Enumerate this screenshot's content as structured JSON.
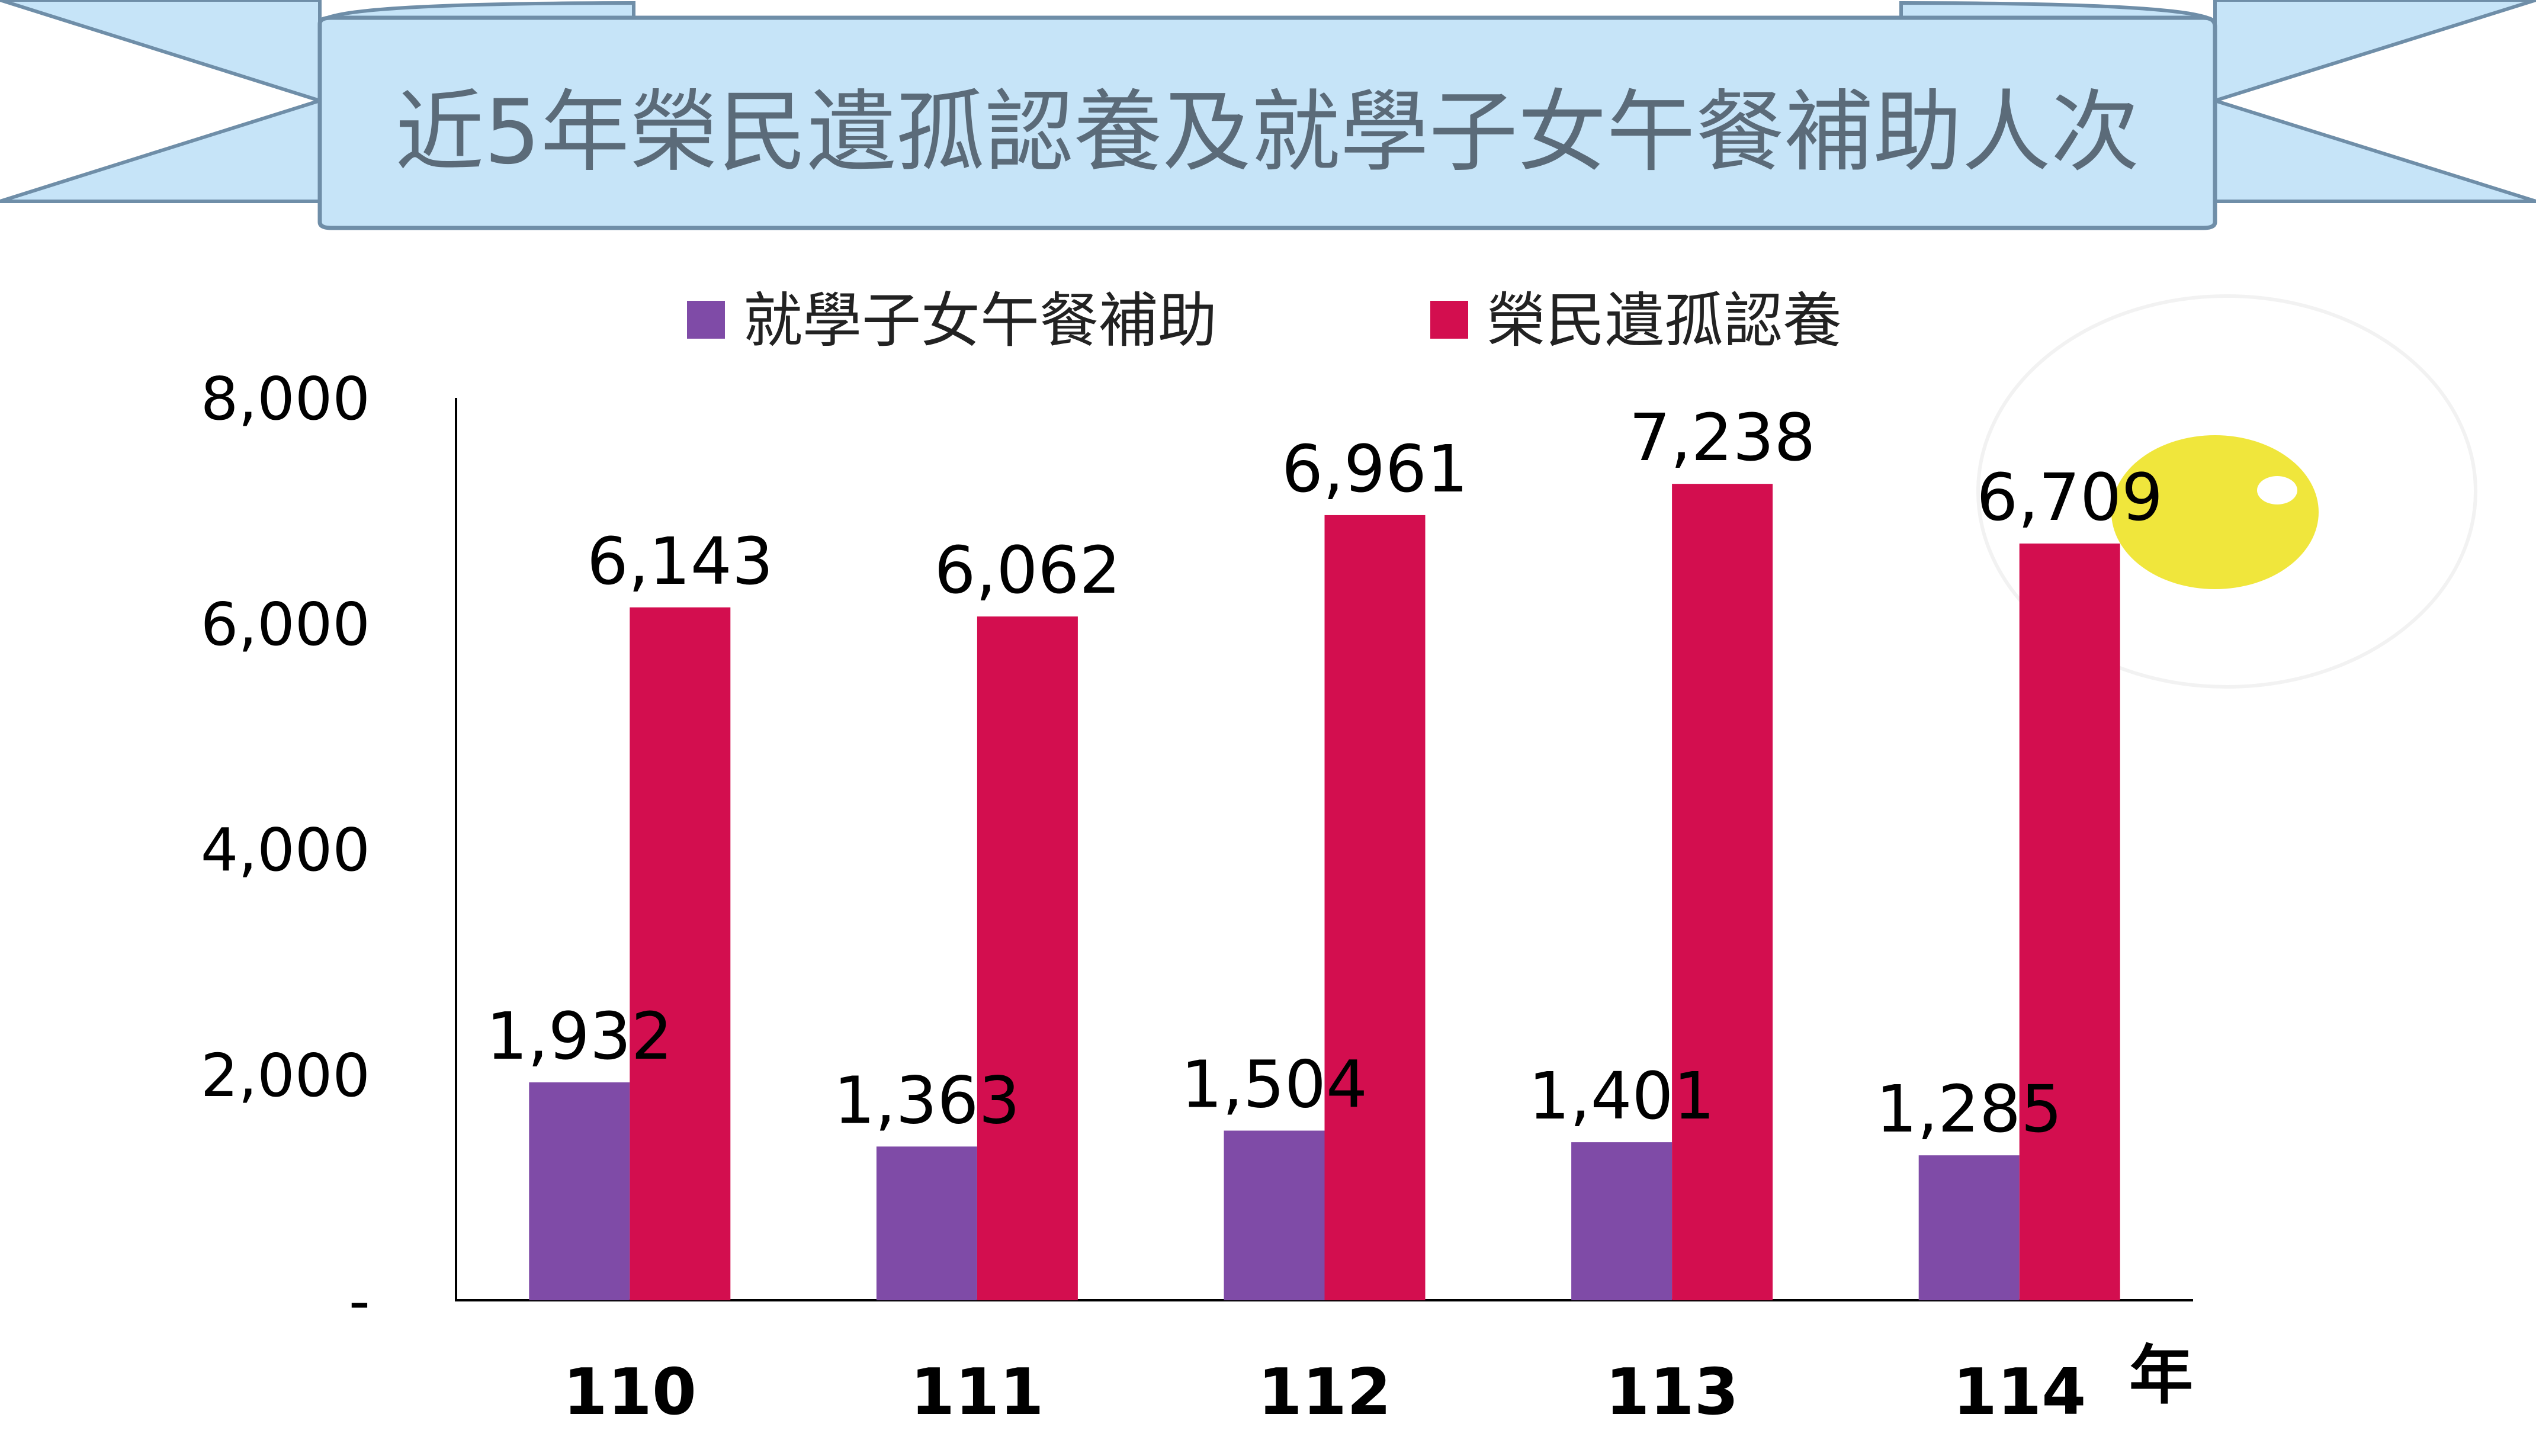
{
  "chart_data": {
    "type": "bar",
    "title": "近5年榮民遺孤認養及就學子女午餐補助人次",
    "categories": [
      "110",
      "111",
      "112",
      "113",
      "114"
    ],
    "xunit": "年",
    "series": [
      {
        "name": "就學子女午餐補助",
        "values": [
          1932,
          1363,
          1504,
          1401,
          1285
        ],
        "labels": [
          "1,932",
          "1,363",
          "1,504",
          "1,401",
          "1,285"
        ],
        "color": "#7f4ba7"
      },
      {
        "name": "榮民遺孤認養",
        "values": [
          6143,
          6062,
          6961,
          7238,
          6709
        ],
        "labels": [
          "6,143",
          "6,062",
          "6,961",
          "7,238",
          "6,709"
        ],
        "color": "#d30e4f"
      }
    ],
    "ylim": [
      0,
      8000
    ],
    "yticks": [
      0,
      2000,
      4000,
      6000,
      8000
    ],
    "ytick_labels": [
      "-",
      "2,000",
      "4,000",
      "6,000",
      "8,000"
    ],
    "legend": "top",
    "grid": false
  },
  "colors": {
    "banner_fill": "#c6e4f8",
    "banner_stroke": "#6f8ea8",
    "axis": "#000000",
    "sun": "#f0e63c"
  }
}
